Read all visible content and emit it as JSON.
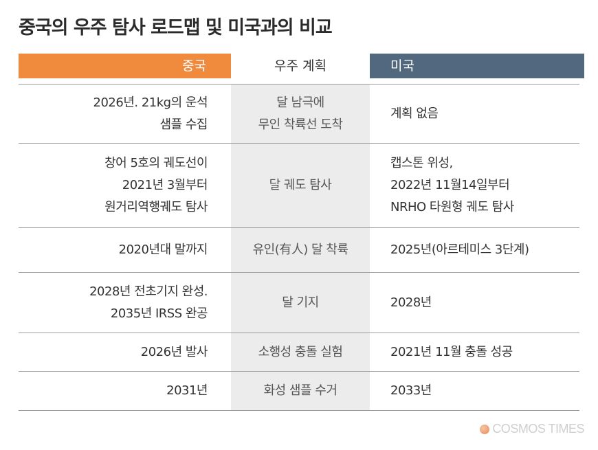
{
  "title": "중국의 우주 탐사 로드맵 및 미국과의 비교",
  "headers": {
    "china": "중국",
    "plan": "우주 계획",
    "usa": "미국"
  },
  "rows": [
    {
      "china": [
        "2026년. 21kg의 운석",
        "샘플 수집"
      ],
      "plan": [
        "달 남극에",
        "무인 착륙선 도착"
      ],
      "usa": [
        "계획 없음"
      ]
    },
    {
      "china": [
        "창어 5호의 궤도선이",
        "2021년 3월부터",
        "원거리역행궤도 탐사"
      ],
      "plan": [
        "달 궤도 탐사"
      ],
      "usa": [
        "캡스톤 위성,",
        "2022년 11월14일부터",
        "NRHO 타원형 궤도 탐사"
      ]
    },
    {
      "china": [
        "2020년대 말까지"
      ],
      "plan": [
        "유인(有人) 달 착륙"
      ],
      "usa": [
        "2025년(아르테미스 3단계)"
      ]
    },
    {
      "china": [
        "2028년 전초기지 완성.",
        "2035년 IRSS 완공"
      ],
      "plan": [
        "달 기지"
      ],
      "usa": [
        "2028년"
      ]
    },
    {
      "china": [
        "2026년 발사"
      ],
      "plan": [
        "소행성 충돌 실험"
      ],
      "usa": [
        "2021년 11월 충돌 성공"
      ]
    },
    {
      "china": [
        "2031년"
      ],
      "plan": [
        "화성 샘플 수거"
      ],
      "usa": [
        "2033년"
      ]
    }
  ],
  "logo": {
    "text": "COSMOS TIMES",
    "icon": "cosmos-times-logo-icon"
  },
  "colors": {
    "china": "#f08a3c",
    "usa": "#52687e",
    "middle_column": "#ececec"
  }
}
